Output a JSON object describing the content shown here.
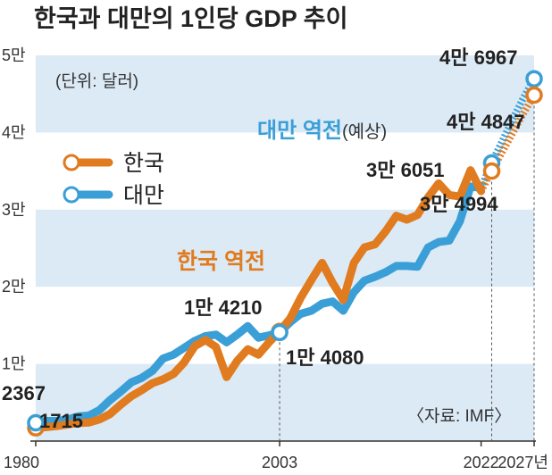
{
  "chart_data": {
    "type": "line",
    "title": "한국과 대만의 1인당 GDP 추이",
    "unit_note": "(단위: 달러)",
    "source": "〈자료: IMF〉",
    "y_ticks": [
      {
        "value": 10000,
        "label": "1만"
      },
      {
        "value": 20000,
        "label": "2만"
      },
      {
        "value": 30000,
        "label": "3만"
      },
      {
        "value": 40000,
        "label": "4만"
      },
      {
        "value": 50000,
        "label": "5만"
      }
    ],
    "x_ticks": [
      {
        "value": 1980,
        "label": "1980"
      },
      {
        "value": 2003,
        "label": "2003"
      },
      {
        "value": 2022,
        "label": "2022"
      },
      {
        "value": 2027,
        "label": "2027년"
      }
    ],
    "xlim": [
      1980,
      2027
    ],
    "ylim": [
      0,
      50000
    ],
    "colors": {
      "korea": "#e07b1f",
      "taiwan": "#3a9fd6",
      "band": "#dceaf6"
    },
    "legend": [
      {
        "name": "한국",
        "color": "#e07b1f"
      },
      {
        "name": "대만",
        "color": "#3a9fd6"
      }
    ],
    "series": [
      {
        "name": "한국",
        "color": "#e07b1f",
        "x": [
          1980,
          1981,
          1982,
          1983,
          1984,
          1985,
          1986,
          1987,
          1988,
          1989,
          1990,
          1991,
          1992,
          1993,
          1994,
          1995,
          1996,
          1997,
          1998,
          1999,
          2000,
          2001,
          2002,
          2003,
          2004,
          2005,
          2006,
          2007,
          2008,
          2009,
          2010,
          2011,
          2012,
          2013,
          2014,
          2015,
          2016,
          2017,
          2018,
          2019,
          2020,
          2021,
          2022
        ],
        "y": [
          1715,
          1800,
          1950,
          2150,
          2350,
          2400,
          2800,
          3500,
          4700,
          5800,
          6600,
          7500,
          8000,
          8700,
          10200,
          12300,
          13100,
          12200,
          8300,
          10400,
          11900,
          11200,
          12800,
          14210,
          15900,
          18600,
          20900,
          23100,
          20500,
          18300,
          23100,
          25100,
          25500,
          27200,
          29200,
          28700,
          29300,
          31600,
          33400,
          31900,
          31700,
          35100,
          32400
        ]
      },
      {
        "name": "한국",
        "projection": true,
        "color": "#e07b1f",
        "x": [
          2022,
          2023,
          2024,
          2025,
          2026,
          2027
        ],
        "y": [
          32400,
          35000,
          37500,
          40000,
          42500,
          44847
        ]
      },
      {
        "name": "대만",
        "color": "#3a9fd6",
        "x": [
          1980,
          1981,
          1982,
          1983,
          1984,
          1985,
          1986,
          1987,
          1988,
          1989,
          1990,
          1991,
          1992,
          1993,
          1994,
          1995,
          1996,
          1997,
          1998,
          1999,
          2000,
          2001,
          2002,
          2003,
          2004,
          2005,
          2006,
          2007,
          2008,
          2009,
          2010,
          2011,
          2012,
          2013,
          2014,
          2015,
          2016,
          2017,
          2018,
          2019,
          2020,
          2021,
          2022
        ],
        "y": [
          2367,
          2600,
          2600,
          2800,
          3200,
          3300,
          4000,
          5300,
          6400,
          7600,
          8200,
          9100,
          10700,
          11200,
          12100,
          13000,
          13600,
          13800,
          12800,
          13800,
          14900,
          13400,
          13700,
          14080,
          15400,
          16500,
          16900,
          17800,
          18100,
          16900,
          19300,
          20800,
          21300,
          21900,
          22700,
          22700,
          22600,
          25100,
          25800,
          26000,
          28500,
          33000,
          32811
        ]
      },
      {
        "name": "대만",
        "projection": true,
        "color": "#3a9fd6",
        "x": [
          2022,
          2023,
          2024,
          2025,
          2026,
          2027
        ],
        "y": [
          32811,
          36051,
          38900,
          41800,
          44500,
          46967
        ]
      }
    ],
    "point_labels": [
      {
        "series": "한국",
        "x": 1980,
        "y": 1715,
        "text": "1715"
      },
      {
        "series": "대만",
        "x": 1980,
        "y": 2367,
        "text": "2367"
      },
      {
        "series": "한국",
        "x": 2003,
        "y": 14210,
        "text": "1만 4210"
      },
      {
        "series": "대만",
        "x": 2003,
        "y": 14080,
        "text": "1만 4080"
      },
      {
        "series": "대만",
        "x": 2023,
        "y": 36051,
        "text": "3만 6051"
      },
      {
        "series": "한국",
        "x": 2023,
        "y": 34994,
        "text": "3만 4994"
      },
      {
        "series": "대만",
        "x": 2027,
        "y": 46967,
        "text": "4만 6967"
      },
      {
        "series": "한국",
        "x": 2027,
        "y": 44847,
        "text": "4만 4847"
      }
    ],
    "annotations": {
      "korea_overtake": "한국 역전",
      "taiwan_overtake": "대만 역전",
      "taiwan_overtake_note": "(예상)"
    }
  }
}
